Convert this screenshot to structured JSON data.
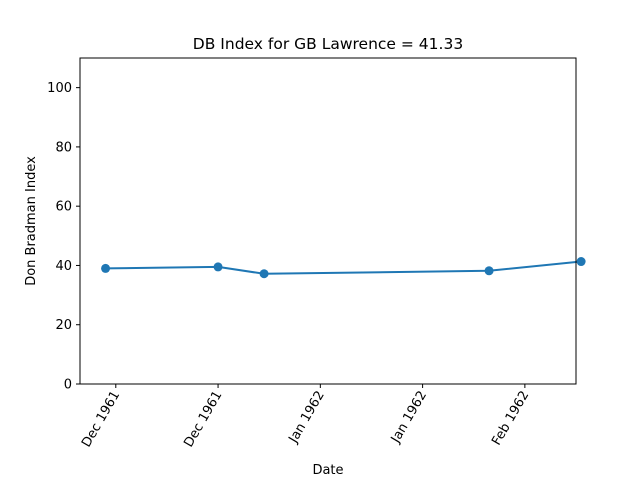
{
  "chart_data": {
    "type": "line",
    "title": "DB Index for GB Lawrence = 41.33",
    "xlabel": "Date",
    "ylabel": "Don Bradman Index",
    "xlim": [
      "1961-11-24",
      "1962-03-01"
    ],
    "ylim": [
      0,
      110
    ],
    "yticks": [
      0,
      20,
      40,
      60,
      80,
      100
    ],
    "xticks": [
      {
        "date": "1961-12-01",
        "label": "Dec 1961"
      },
      {
        "date": "1961-12-21",
        "label": "Dec 1961"
      },
      {
        "date": "1962-01-10",
        "label": "Jan 1962"
      },
      {
        "date": "1962-01-30",
        "label": "Jan 1962"
      },
      {
        "date": "1962-02-19",
        "label": "Feb 1962"
      }
    ],
    "grid": false,
    "series": [
      {
        "color": "#1f77b4",
        "x": [
          "1961-11-29",
          "1961-12-21",
          "1961-12-30",
          "1962-02-12",
          "1962-03-02"
        ],
        "y": [
          39.0,
          39.5,
          37.2,
          38.2,
          41.33
        ]
      }
    ]
  }
}
